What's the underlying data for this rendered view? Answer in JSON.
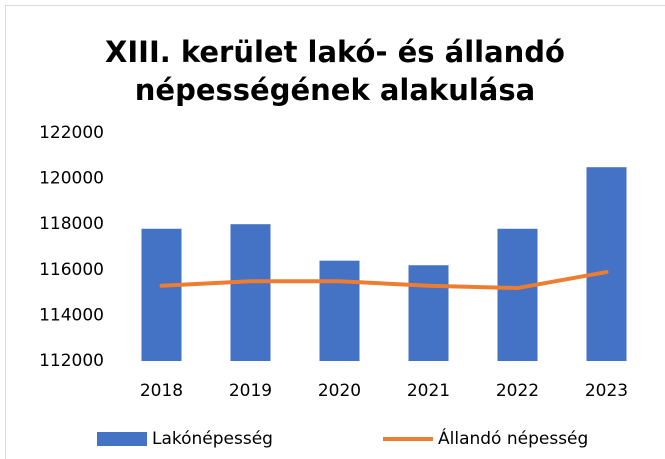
{
  "chart_data": {
    "type": "bar",
    "title": "XIII. kerület lakó- és állandó népességének alakulása",
    "categories": [
      "2018",
      "2019",
      "2020",
      "2021",
      "2022",
      "2023"
    ],
    "series": [
      {
        "name": "Lakónépesség",
        "type": "bar",
        "color": "#4472c4",
        "values": [
          117800,
          118000,
          116400,
          116200,
          117800,
          120500
        ]
      },
      {
        "name": "Állandó népesség",
        "type": "line",
        "color": "#ed7d31",
        "values": [
          115300,
          115500,
          115500,
          115300,
          115200,
          115900
        ]
      }
    ],
    "ylim": [
      112000,
      122000
    ],
    "yticks": [
      112000,
      114000,
      116000,
      118000,
      120000,
      122000
    ],
    "grid": false,
    "legend": "bottom"
  }
}
